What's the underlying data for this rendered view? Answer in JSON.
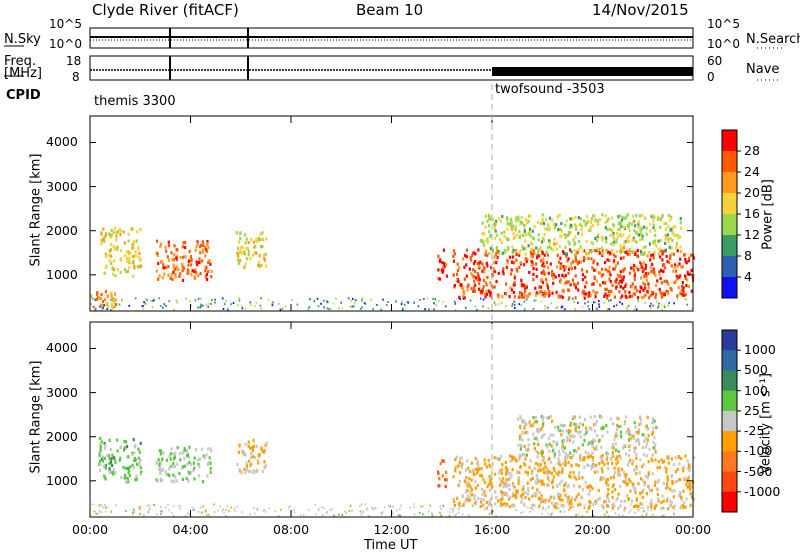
{
  "header": {
    "title": "Clyde River (fitACF)",
    "beam": "Beam 10",
    "date": "14/Nov/2015"
  },
  "strip_labels": {
    "nsky": "N.Sky",
    "nsearch": "N.Search",
    "freq_line1": "Freq.",
    "freq_line2": "[MHz]",
    "nave": "Nave",
    "cpid": "CPID",
    "nsky_top": "10^5",
    "nsky_bottom": "10^0",
    "nsearch_top": "10^5",
    "nsearch_bottom": "10^0",
    "freq_top": "18",
    "freq_bottom": "8",
    "nave_top": "60",
    "nave_bottom": "0"
  },
  "cpid": [
    {
      "name": "themis 3300"
    },
    {
      "name": "twofsound -3503"
    }
  ],
  "axes": {
    "ylabel": "Slant Range [km]",
    "xlabel": "Time UT",
    "yticks": [
      "4000",
      "3000",
      "2000",
      "1000"
    ],
    "xticks": [
      "00:00",
      "04:00",
      "08:00",
      "12:00",
      "16:00",
      "20:00",
      "00:00"
    ]
  },
  "colorbars": {
    "power": {
      "label": "Power [dB]",
      "ticks": [
        "28",
        "24",
        "20",
        "16",
        "12",
        "8",
        "4"
      ],
      "colors": [
        "#ff0000",
        "#ff5a00",
        "#ff9a1e",
        "#f5d23c",
        "#9ad84a",
        "#3a9c66",
        "#2e5fb0",
        "#1010f0"
      ]
    },
    "velocity": {
      "label": "Velocity [m s⁻¹]",
      "ticks": [
        "1000",
        "500",
        "100",
        "25",
        "-25",
        "-100",
        "-500",
        "-1000"
      ],
      "colors": [
        "#2a3c9c",
        "#2e6aa6",
        "#3a8a5a",
        "#5cc840",
        "#c8c8c8",
        "#ffa000",
        "#ff7a1e",
        "#ff4a14",
        "#ff0000"
      ]
    }
  },
  "chart_data": [
    {
      "type": "heatmap",
      "title": "Power [dB]",
      "xlabel": "Time UT",
      "ylabel": "Slant Range [km]",
      "xlim": [
        0,
        24
      ],
      "ylim": [
        180,
        4600
      ],
      "colorbar_range": [
        3,
        30
      ],
      "patches": [
        {
          "t0": 0.0,
          "t1": 1.0,
          "r0": 200,
          "r1": 700,
          "value": 22
        },
        {
          "t0": 0.4,
          "t1": 2.0,
          "r0": 1000,
          "r1": 2100,
          "value": 18
        },
        {
          "t0": 2.6,
          "t1": 4.8,
          "r0": 900,
          "r1": 1800,
          "value": 24
        },
        {
          "t0": 5.8,
          "t1": 7.0,
          "r0": 1200,
          "r1": 2000,
          "value": 18
        },
        {
          "t0": 13.8,
          "t1": 14.2,
          "r0": 900,
          "r1": 1600,
          "value": 27
        },
        {
          "t0": 14.4,
          "t1": 24.0,
          "r0": 500,
          "r1": 1600,
          "value": 26
        },
        {
          "t0": 15.5,
          "t1": 23.5,
          "r0": 1500,
          "r1": 2400,
          "value": 16
        }
      ]
    },
    {
      "type": "heatmap",
      "title": "Velocity [m s⁻¹]",
      "xlabel": "Time UT",
      "ylabel": "Slant Range [km]",
      "xlim": [
        0,
        24
      ],
      "ylim": [
        180,
        4600
      ],
      "colorbar_range": [
        -1000,
        1000
      ],
      "patches": [
        {
          "t0": 0.3,
          "t1": 2.0,
          "r0": 1000,
          "r1": 2000,
          "value": 200
        },
        {
          "t0": 2.6,
          "t1": 4.8,
          "r0": 1000,
          "r1": 1800,
          "value": 100
        },
        {
          "t0": 5.8,
          "t1": 7.0,
          "r0": 1200,
          "r1": 2000,
          "value": -150
        },
        {
          "t0": 13.8,
          "t1": 14.2,
          "r0": 900,
          "r1": 1500,
          "value": -600
        },
        {
          "t0": 14.4,
          "t1": 24.0,
          "r0": 400,
          "r1": 1600,
          "value": -150
        },
        {
          "t0": 17.0,
          "t1": 22.5,
          "r0": 1600,
          "r1": 2500,
          "value": 0
        }
      ]
    }
  ]
}
